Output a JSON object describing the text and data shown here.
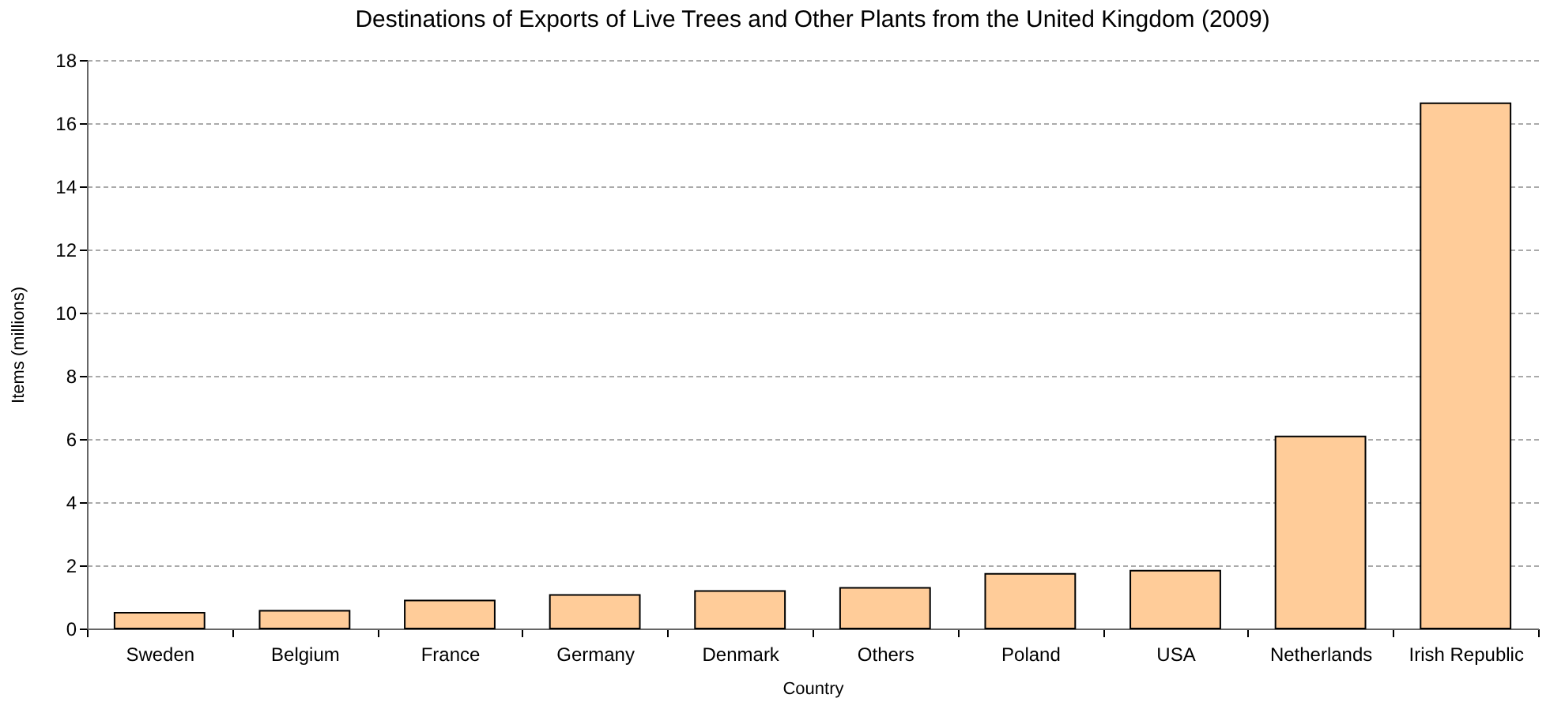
{
  "chart_data": {
    "type": "bar",
    "title": "Destinations of Exports of Live Trees and Other Plants from the United Kingdom (2009)",
    "xlabel": "Country",
    "ylabel": "Items (millions)",
    "categories": [
      "Sweden",
      "Belgium",
      "France",
      "Germany",
      "Denmark",
      "Others",
      "Poland",
      "USA",
      "Netherlands",
      "Irish Republic"
    ],
    "values": [
      0.5,
      0.56,
      0.89,
      1.06,
      1.19,
      1.29,
      1.73,
      1.83,
      6.08,
      16.63
    ],
    "color": "#ffcc99",
    "ylim": [
      0,
      18
    ],
    "yticks": [
      0,
      2,
      4,
      6,
      8,
      10,
      12,
      14,
      16,
      18
    ],
    "grid": "y"
  }
}
